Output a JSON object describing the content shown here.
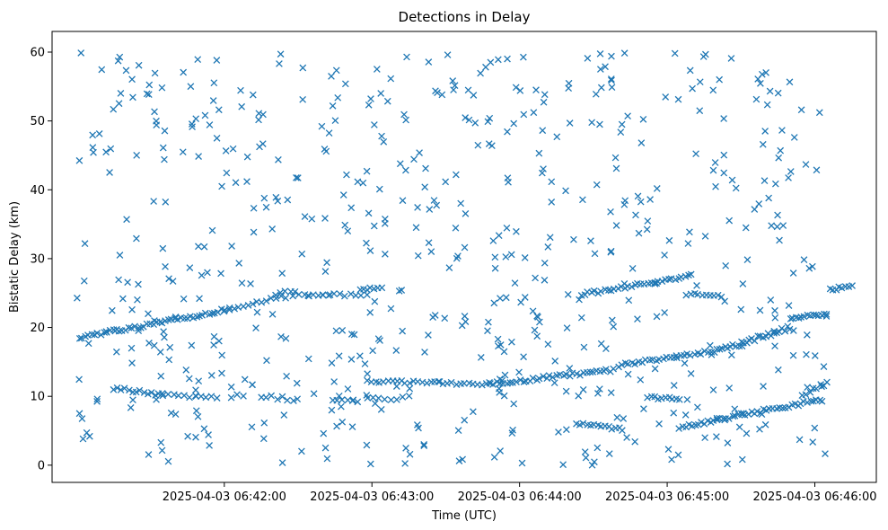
{
  "chart_data": {
    "type": "scatter",
    "title": "Detections in Delay",
    "xlabel": "Time (UTC)",
    "ylabel": "Bistatic Delay (km)",
    "x_unit": "seconds after 2025-04-03 06:41:00",
    "xlim": [
      -10,
      325
    ],
    "ylim": [
      -2.5,
      63
    ],
    "xticks": [
      {
        "value": 60,
        "label": "2025-04-03 06:42:00"
      },
      {
        "value": 120,
        "label": "2025-04-03 06:43:00"
      },
      {
        "value": 180,
        "label": "2025-04-03 06:44:00"
      },
      {
        "value": 240,
        "label": "2025-04-03 06:45:00"
      },
      {
        "value": 300,
        "label": "2025-04-03 06:46:00"
      }
    ],
    "yticks": [
      0,
      10,
      20,
      30,
      40,
      50,
      60
    ],
    "marker": "x",
    "color": "#1f77b4",
    "grid": false,
    "series": [
      {
        "name": "Detections",
        "x": [],
        "y": []
      }
    ]
  }
}
